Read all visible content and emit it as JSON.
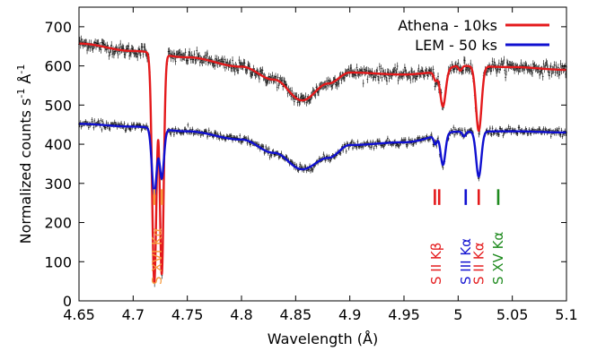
{
  "chart_data": {
    "type": "line",
    "title": "",
    "xlabel": "Wavelength (Å)",
    "ylabel_main": "Normalized counts s",
    "ylabel_sup1": "-1",
    "ylabel_mid": " Å",
    "ylabel_sup2": "-1",
    "xlim": [
      4.65,
      5.1
    ],
    "ylim": [
      0,
      750
    ],
    "x_ticks": [
      4.65,
      4.7,
      4.75,
      4.8,
      4.85,
      4.9,
      4.95,
      5.0,
      5.05,
      5.1
    ],
    "x_tick_labels": [
      "4.65",
      "4.7",
      "4.75",
      "4.8",
      "4.85",
      "4.9",
      "4.95",
      "5",
      "5.05",
      "5.1"
    ],
    "y_ticks": [
      0,
      100,
      200,
      300,
      400,
      500,
      600,
      700
    ],
    "y_tick_labels": [
      "0",
      "100",
      "200",
      "300",
      "400",
      "500",
      "600",
      "700"
    ],
    "legend_position": "top-right",
    "series": [
      {
        "name": "Athena - 10ks",
        "color": "#e41a1c",
        "data_color": "#000000",
        "continuum": [
          [
            4.65,
            657
          ],
          [
            4.7,
            638
          ],
          [
            4.75,
            622
          ],
          [
            4.8,
            598
          ],
          [
            4.83,
            565
          ],
          [
            4.856,
            512
          ],
          [
            4.88,
            555
          ],
          [
            4.9,
            583
          ],
          [
            4.95,
            578
          ],
          [
            4.98,
            583
          ],
          [
            5.0,
            600
          ],
          [
            5.05,
            597
          ],
          [
            5.1,
            590
          ]
        ],
        "lines": [
          {
            "center": 4.7195,
            "depth": 585,
            "width": 0.002
          },
          {
            "center": 4.7264,
            "depth": 560,
            "width": 0.0018
          },
          {
            "center": 4.979,
            "depth": 20,
            "width": 0.0015
          },
          {
            "center": 4.986,
            "depth": 90,
            "width": 0.0025
          },
          {
            "center": 5.002,
            "depth": 12,
            "width": 0.0015
          },
          {
            "center": 5.019,
            "depth": 165,
            "width": 0.0026
          }
        ],
        "noise": 11
      },
      {
        "name": "LEM - 50 ks",
        "color": "#1010d0",
        "data_color": "#000000",
        "continuum": [
          [
            4.65,
            452
          ],
          [
            4.7,
            445
          ],
          [
            4.75,
            433
          ],
          [
            4.8,
            412
          ],
          [
            4.83,
            378
          ],
          [
            4.856,
            336
          ],
          [
            4.88,
            365
          ],
          [
            4.9,
            398
          ],
          [
            4.95,
            405
          ],
          [
            5.0,
            432
          ],
          [
            5.05,
            433
          ],
          [
            5.1,
            430
          ]
        ],
        "lines": [
          {
            "center": 4.7195,
            "depth": 170,
            "width": 0.0022
          },
          {
            "center": 4.7264,
            "depth": 125,
            "width": 0.002
          },
          {
            "center": 4.979,
            "depth": 22,
            "width": 0.0015
          },
          {
            "center": 4.986,
            "depth": 80,
            "width": 0.0022
          },
          {
            "center": 5.0055,
            "depth": 12,
            "width": 0.0015
          },
          {
            "center": 5.019,
            "depth": 115,
            "width": 0.0024
          }
        ],
        "noise": 7
      }
    ],
    "line_markers": [
      {
        "x": 4.7195,
        "color": "#f79a3e"
      },
      {
        "x": 4.7264,
        "color": "#f79a3e"
      },
      {
        "x": 4.9785,
        "color": "#e41a1c"
      },
      {
        "x": 4.9825,
        "color": "#e41a1c"
      },
      {
        "x": 5.007,
        "color": "#1010d0"
      },
      {
        "x": 5.019,
        "color": "#e41a1c"
      },
      {
        "x": 5.037,
        "color": "#1e8a1e"
      }
    ],
    "marker_y_range": [
      245,
      285
    ],
    "annotations": [
      {
        "text": "S XVI Kα",
        "x": 4.722,
        "color": "#f79a3e"
      },
      {
        "text": "S II Kβ",
        "x": 4.98,
        "color": "#e41a1c"
      },
      {
        "text": "S III Kα",
        "x": 5.007,
        "color": "#1010d0"
      },
      {
        "text": "S II Kα",
        "x": 5.019,
        "color": "#e41a1c"
      },
      {
        "text": "S XV Kα",
        "x": 5.037,
        "color": "#1e8a1e"
      }
    ]
  }
}
